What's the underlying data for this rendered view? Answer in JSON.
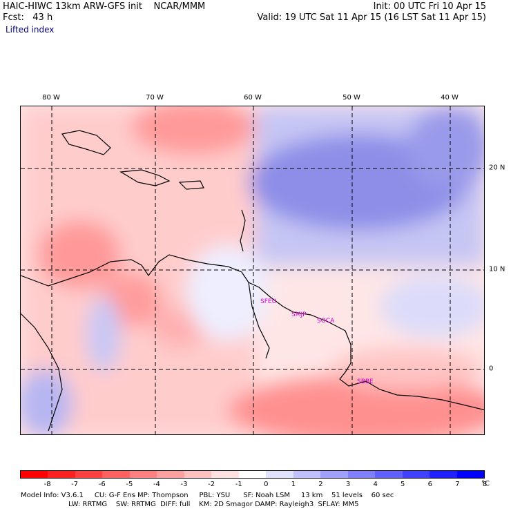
{
  "header": {
    "model_line": "HAIC-HIWC 13km ARW-GFS init    NCAR/MMM",
    "init_line": "Init: 00 UTC Fri 10 Apr 15",
    "fcst_line": "Fcst:   43 h",
    "valid_line": "Valid: 19 UTC Sat 11 Apr 15 (16 LST Sat 11 Apr 15)",
    "field_name": "Lifted index"
  },
  "map": {
    "lon_labels": [
      "80 W",
      "70 W",
      "60 W",
      "50 W",
      "40 W"
    ],
    "lat_labels": [
      "20 N",
      "10 N",
      "0"
    ],
    "stations": [
      "SFEU",
      "SMJP",
      "SOCA",
      "SBBE"
    ]
  },
  "colorbar": {
    "colors": [
      "#ff0000",
      "#ff2020",
      "#ff4040",
      "#ff6060",
      "#ff8080",
      "#ffa0a0",
      "#ffc0c0",
      "#ffe0e0",
      "#ffffff",
      "#e0e0ff",
      "#c0c0ff",
      "#a0a0ff",
      "#8080ff",
      "#6060ff",
      "#4040ff",
      "#2020ff",
      "#0000ff"
    ],
    "ticks": [
      "-8",
      "-7",
      "-6",
      "-5",
      "-4",
      "-3",
      "-2",
      "-1",
      "0",
      "1",
      "2",
      "3",
      "4",
      "5",
      "6",
      "7",
      "8"
    ],
    "unit": "°C"
  },
  "footer": {
    "line1": "Model Info: V3.6.1     CU: G-F Ens MP: Thompson     PBL: YSU      SF: Noah LSM     13 km    51 levels    60 sec",
    "line2": "LW: RRTMG    SW: RRTMG  DIFF: full    KM: 2D Smagor DAMP: Rayleigh3  SFLAY: MM5"
  }
}
